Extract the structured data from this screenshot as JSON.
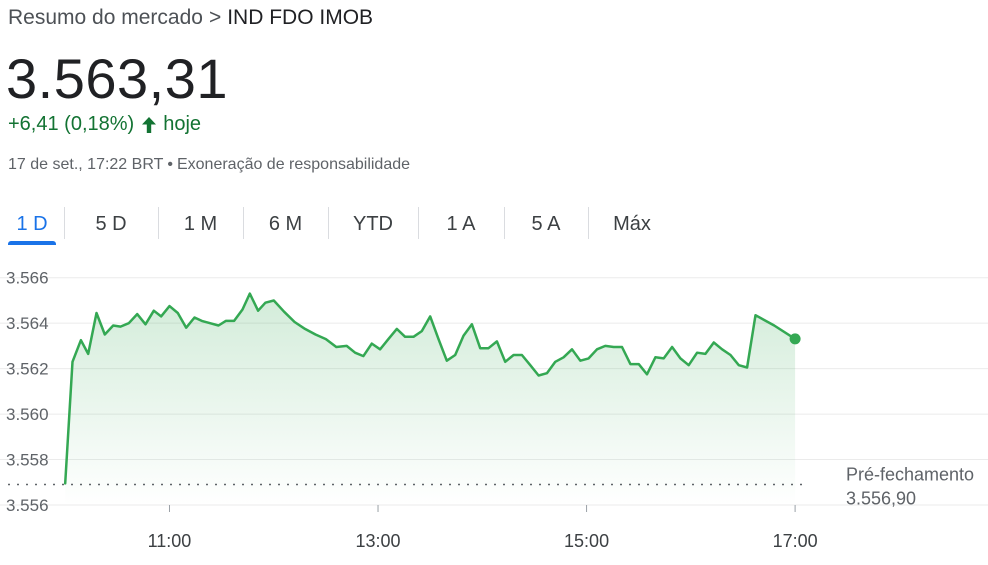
{
  "breadcrumb": {
    "parent": "Resumo do mercado",
    "separator": ">",
    "current": "IND FDO IMOB"
  },
  "quote": {
    "price": "3.563,31",
    "change": "+6,41 (0,18%)",
    "change_word": "hoje",
    "timestamp": "17 de set., 17:22 BRT",
    "separator": "•",
    "disclaimer": "Exoneração de responsabilidade"
  },
  "icons": {
    "change_arrow": "arrow-up-icon"
  },
  "tabs": [
    {
      "label": "1 D",
      "active": true
    },
    {
      "label": "5 D",
      "active": false
    },
    {
      "label": "1 M",
      "active": false
    },
    {
      "label": "6 M",
      "active": false
    },
    {
      "label": "YTD",
      "active": false
    },
    {
      "label": "1 A",
      "active": false
    },
    {
      "label": "5 A",
      "active": false
    },
    {
      "label": "Máx",
      "active": false
    }
  ],
  "colors": {
    "up": "#137333",
    "line": "#34a853",
    "accent": "#1a73e8",
    "grid": "#ebebeb"
  },
  "chart_data": {
    "type": "area",
    "title": "",
    "xlabel": "",
    "ylabel": "",
    "x_unit": "time of day (decimal hours)",
    "xlim": [
      9.95,
      18.85
    ],
    "ylim": [
      3556,
      3567
    ],
    "y_ticks": [
      3556,
      3558,
      3560,
      3562,
      3564,
      3566
    ],
    "y_tick_labels": [
      "3.556",
      "3.558",
      "3.560",
      "3.562",
      "3.564",
      "3.566"
    ],
    "x_ticks": [
      11,
      13,
      15,
      17
    ],
    "x_tick_labels": [
      "11:00",
      "13:00",
      "15:00",
      "17:00"
    ],
    "grid": true,
    "previous_close": {
      "label": "Pré-fechamento",
      "value_text": "3.556,90",
      "value": 3556.9
    },
    "last_value": 3563.31,
    "series": [
      {
        "values": [
          [
            10.0,
            3556.95
          ],
          [
            10.07,
            3562.3
          ],
          [
            10.15,
            3563.25
          ],
          [
            10.22,
            3562.65
          ],
          [
            10.3,
            3564.45
          ],
          [
            10.38,
            3563.5
          ],
          [
            10.46,
            3563.9
          ],
          [
            10.53,
            3563.85
          ],
          [
            10.61,
            3564.0
          ],
          [
            10.69,
            3564.4
          ],
          [
            10.77,
            3563.95
          ],
          [
            10.85,
            3564.55
          ],
          [
            10.92,
            3564.3
          ],
          [
            11.0,
            3564.75
          ],
          [
            11.08,
            3564.45
          ],
          [
            11.16,
            3563.8
          ],
          [
            11.24,
            3564.25
          ],
          [
            11.31,
            3564.1
          ],
          [
            11.39,
            3564.0
          ],
          [
            11.47,
            3563.9
          ],
          [
            11.54,
            3564.1
          ],
          [
            11.62,
            3564.1
          ],
          [
            11.7,
            3564.6
          ],
          [
            11.77,
            3565.3
          ],
          [
            11.85,
            3564.55
          ],
          [
            11.92,
            3564.9
          ],
          [
            12.0,
            3565.0
          ],
          [
            12.1,
            3564.5
          ],
          [
            12.2,
            3564.05
          ],
          [
            12.3,
            3563.75
          ],
          [
            12.4,
            3563.5
          ],
          [
            12.5,
            3563.3
          ],
          [
            12.6,
            3562.95
          ],
          [
            12.7,
            3563.0
          ],
          [
            12.78,
            3562.7
          ],
          [
            12.86,
            3562.55
          ],
          [
            12.94,
            3563.1
          ],
          [
            13.02,
            3562.85
          ],
          [
            13.1,
            3563.3
          ],
          [
            13.18,
            3563.75
          ],
          [
            13.26,
            3563.4
          ],
          [
            13.34,
            3563.4
          ],
          [
            13.42,
            3563.65
          ],
          [
            13.5,
            3564.3
          ],
          [
            13.58,
            3563.3
          ],
          [
            13.66,
            3562.35
          ],
          [
            13.74,
            3562.6
          ],
          [
            13.82,
            3563.45
          ],
          [
            13.9,
            3563.95
          ],
          [
            13.98,
            3562.9
          ],
          [
            14.06,
            3562.9
          ],
          [
            14.14,
            3563.2
          ],
          [
            14.22,
            3562.3
          ],
          [
            14.3,
            3562.6
          ],
          [
            14.38,
            3562.6
          ],
          [
            14.46,
            3562.15
          ],
          [
            14.54,
            3561.7
          ],
          [
            14.62,
            3561.8
          ],
          [
            14.7,
            3562.3
          ],
          [
            14.78,
            3562.5
          ],
          [
            14.86,
            3562.85
          ],
          [
            14.94,
            3562.35
          ],
          [
            15.02,
            3562.45
          ],
          [
            15.1,
            3562.85
          ],
          [
            15.18,
            3563.0
          ],
          [
            15.26,
            3562.95
          ],
          [
            15.34,
            3562.95
          ],
          [
            15.42,
            3562.2
          ],
          [
            15.5,
            3562.2
          ],
          [
            15.58,
            3561.75
          ],
          [
            15.66,
            3562.5
          ],
          [
            15.74,
            3562.45
          ],
          [
            15.82,
            3562.95
          ],
          [
            15.9,
            3562.45
          ],
          [
            15.98,
            3562.15
          ],
          [
            16.06,
            3562.7
          ],
          [
            16.14,
            3562.65
          ],
          [
            16.22,
            3563.15
          ],
          [
            16.3,
            3562.85
          ],
          [
            16.38,
            3562.6
          ],
          [
            16.46,
            3562.15
          ],
          [
            16.54,
            3562.05
          ],
          [
            16.62,
            3564.35
          ],
          [
            16.8,
            3563.9
          ],
          [
            17.0,
            3563.31
          ]
        ]
      }
    ]
  }
}
